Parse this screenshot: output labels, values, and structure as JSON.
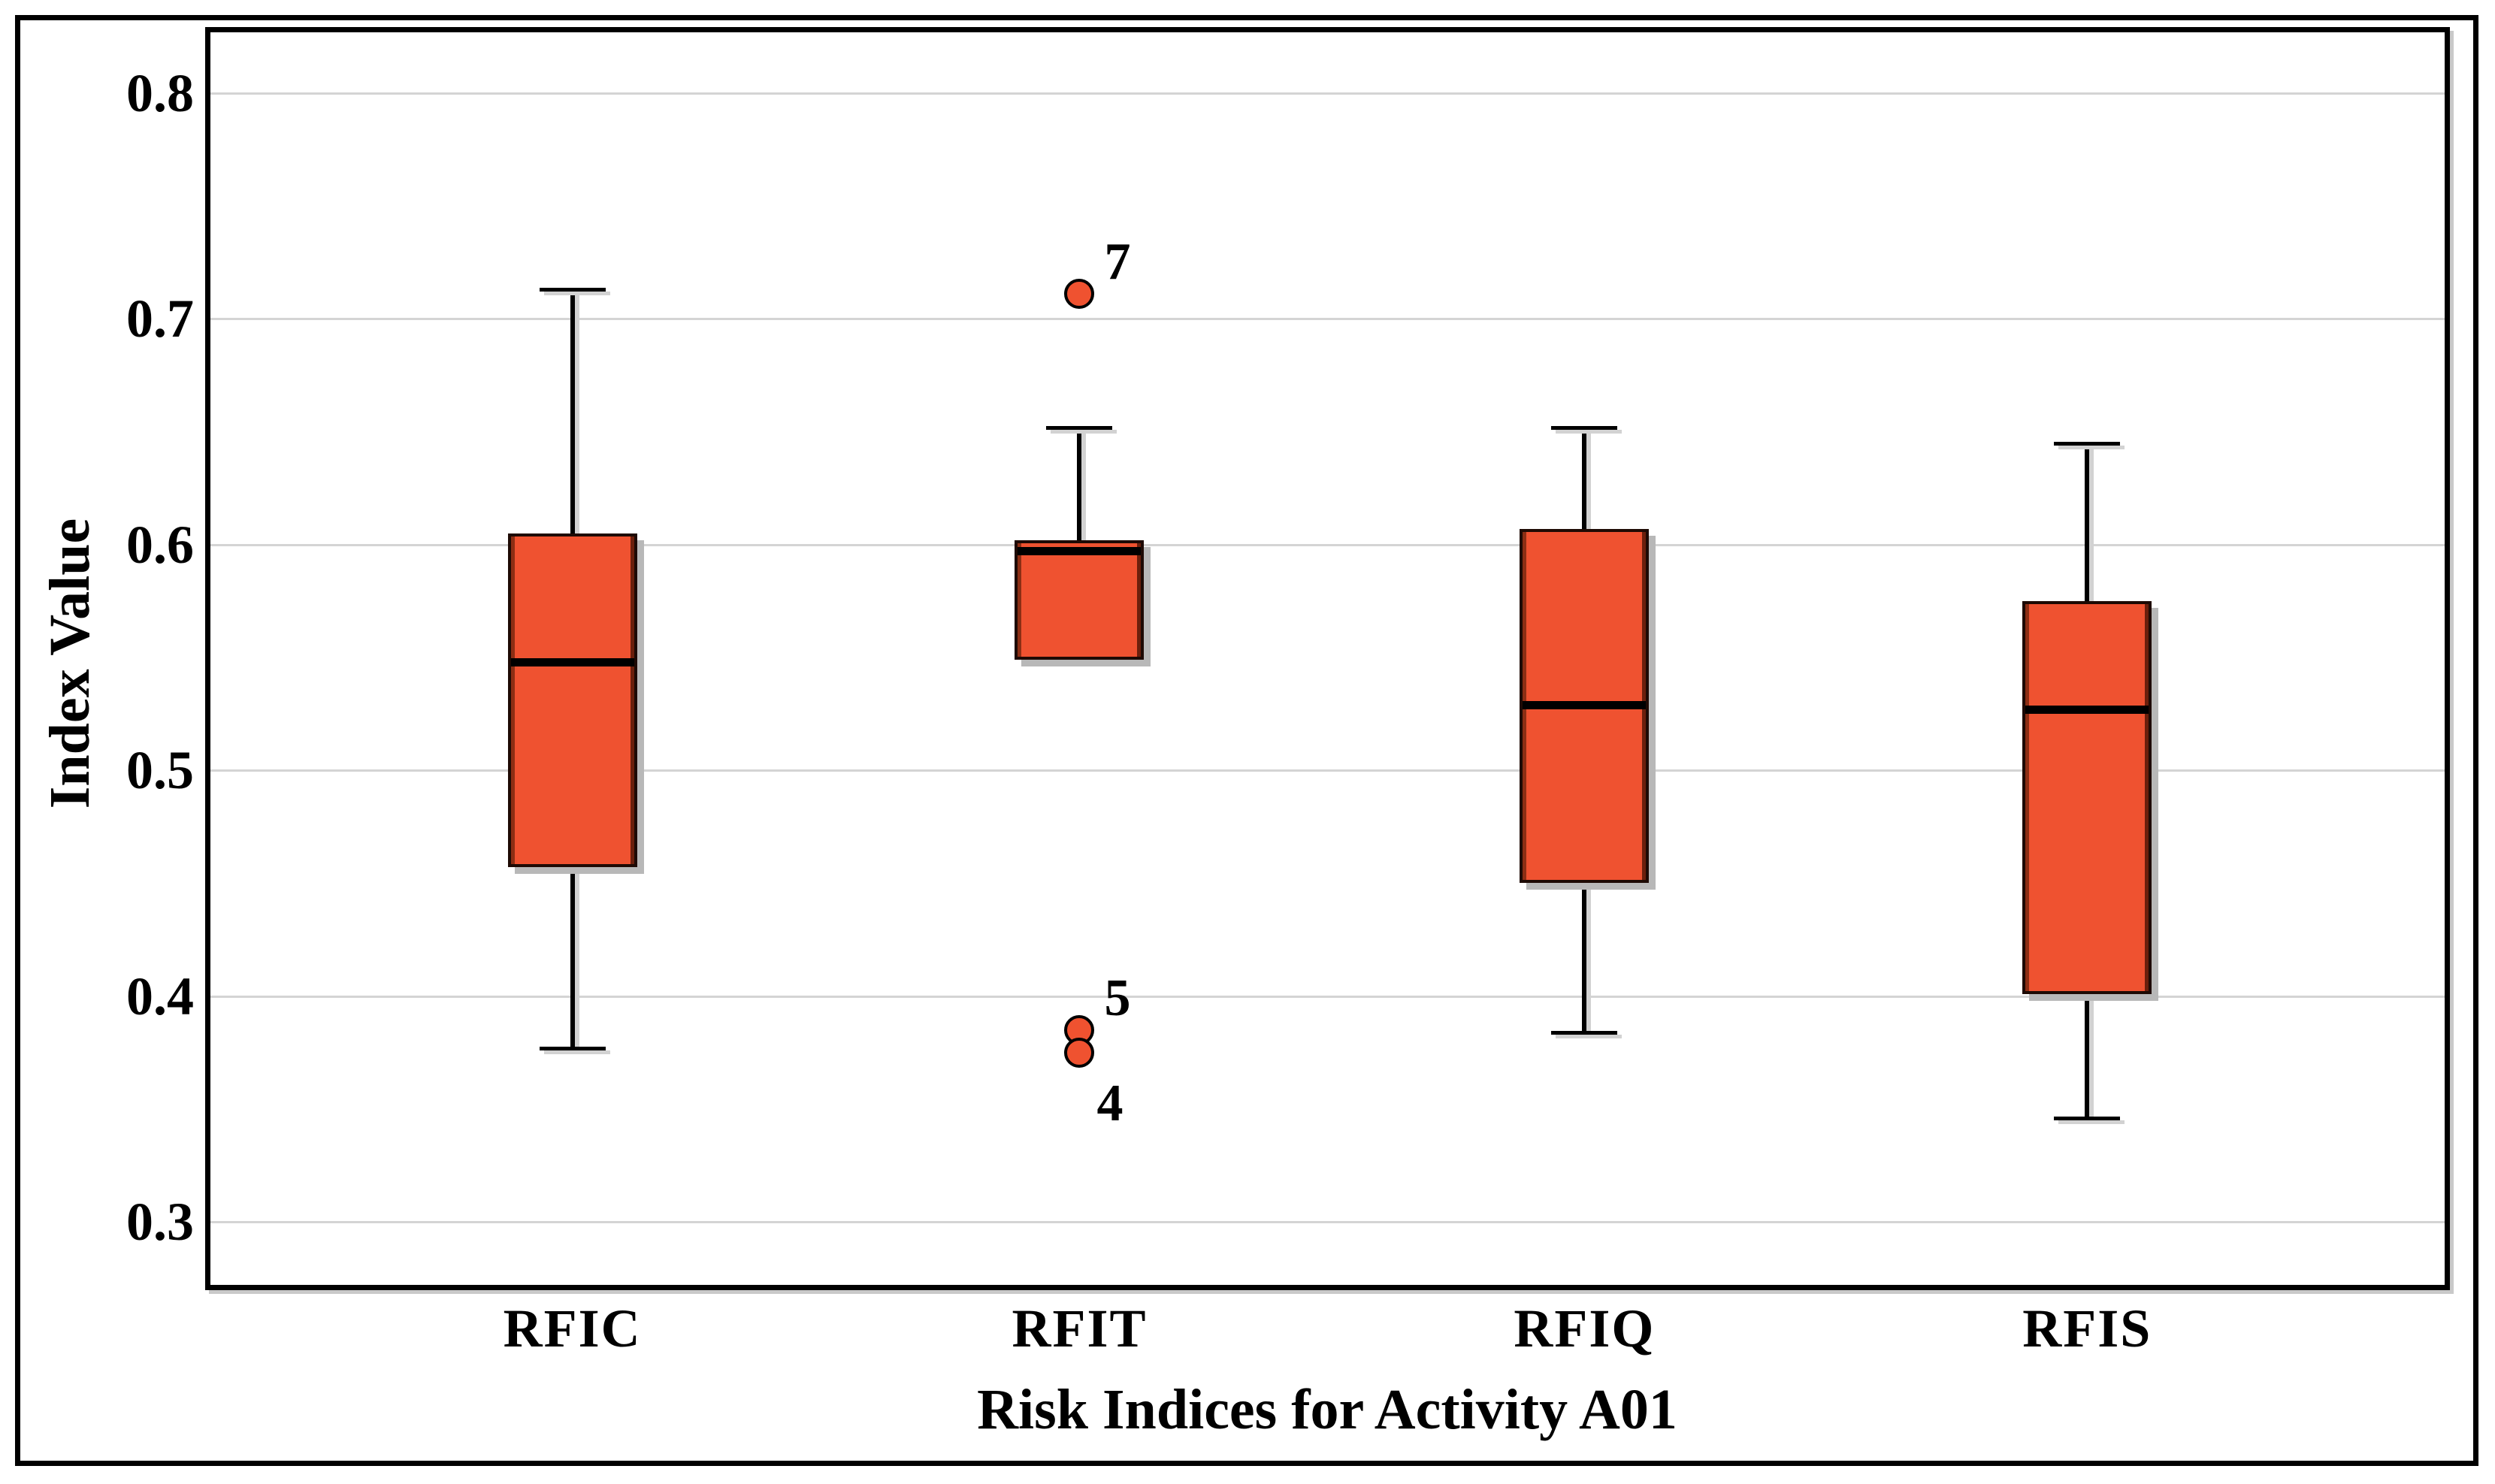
{
  "figure": {
    "background_color": "#ffffff",
    "border_color": "#000000"
  },
  "chart_data": {
    "type": "boxplot",
    "title": "",
    "xlabel": "Risk Indices for Activity A01",
    "ylabel": "Index Value",
    "categories": [
      "RFIC",
      "RFIT",
      "RFIQ",
      "RFIS"
    ],
    "ylim": [
      0.272,
      0.827
    ],
    "yticks": [
      0.8,
      0.7,
      0.6,
      0.5,
      0.4,
      0.3
    ],
    "ytick_labels": [
      "0.8",
      "0.7",
      "0.6",
      "0.5",
      "0.4",
      "0.3"
    ],
    "grid": "horizontal",
    "legend": "none",
    "series": [
      {
        "category": "RFIC",
        "whisker_low": 0.377,
        "q1": 0.457,
        "median": 0.548,
        "q3": 0.605,
        "whisker_high": 0.713,
        "outliers": []
      },
      {
        "category": "RFIT",
        "whisker_low": 0.549,
        "q1": 0.549,
        "median": 0.597,
        "q3": 0.602,
        "whisker_high": 0.652,
        "outliers": [
          {
            "label": "7",
            "value": 0.711,
            "label_pos": "above-right"
          },
          {
            "label": "5",
            "value": 0.385,
            "label_pos": "above-right"
          },
          {
            "label": "4",
            "value": 0.375,
            "label_pos": "below-right"
          }
        ]
      },
      {
        "category": "RFIQ",
        "whisker_low": 0.384,
        "q1": 0.45,
        "median": 0.529,
        "q3": 0.607,
        "whisker_high": 0.652,
        "outliers": []
      },
      {
        "category": "RFIS",
        "whisker_low": 0.346,
        "q1": 0.401,
        "median": 0.527,
        "q3": 0.575,
        "whisker_high": 0.645,
        "outliers": []
      }
    ],
    "colors": {
      "box_fill": "#ef5230",
      "box_edge": "#1e0a04",
      "box_edge_accent": "#8c2e14",
      "median": "#000000",
      "whisker": "#000000",
      "gridline": "#d4d4d4",
      "shadow": "#b8b8b8",
      "panel_border": "#000000",
      "outer_border": "#000000",
      "background": "#ffffff"
    }
  }
}
